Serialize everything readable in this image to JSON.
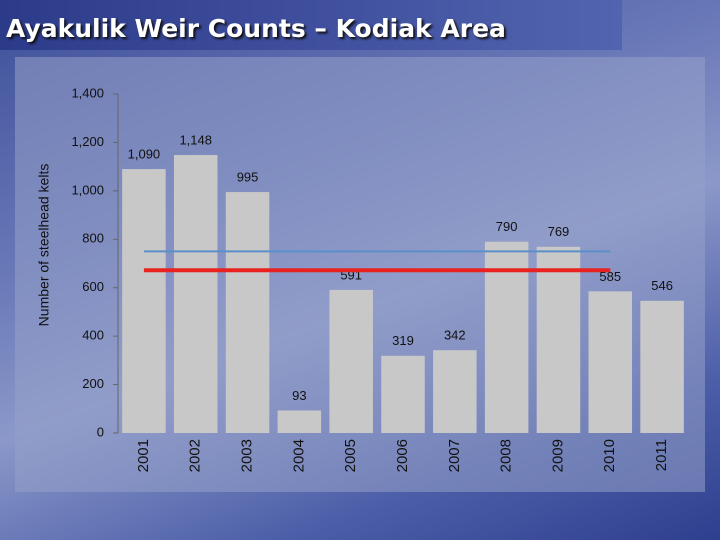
{
  "chart_data": {
    "type": "bar",
    "title": "Ayakulik Weir Counts – Kodiak Area",
    "y_label": "Number of steelhead kelts",
    "categories": [
      "2001",
      "2002",
      "2003",
      "2004",
      "2005",
      "2006",
      "2007",
      "2008",
      "2009",
      "2010",
      "2011"
    ],
    "values": [
      1090,
      1148,
      995,
      93,
      591,
      319,
      342,
      790,
      769,
      585,
      546
    ],
    "value_labels": [
      "1,090",
      "1,148",
      "995",
      "93",
      "591",
      "319",
      "342",
      "790",
      "769",
      "585",
      "546"
    ],
    "color": "#c8c8c8",
    "ylim": [
      0,
      1400
    ],
    "yticks": [
      0,
      200,
      400,
      600,
      800,
      {
        "value": 1000,
        "label": "1,000"
      },
      {
        "value": 1200,
        "label": "1,200"
      },
      {
        "value": 1400,
        "label": "1,400"
      }
    ],
    "reference_lines": [
      {
        "value": 750,
        "color": "#5b8fc9"
      },
      {
        "value": 672,
        "color": "#e8231f"
      }
    ]
  }
}
